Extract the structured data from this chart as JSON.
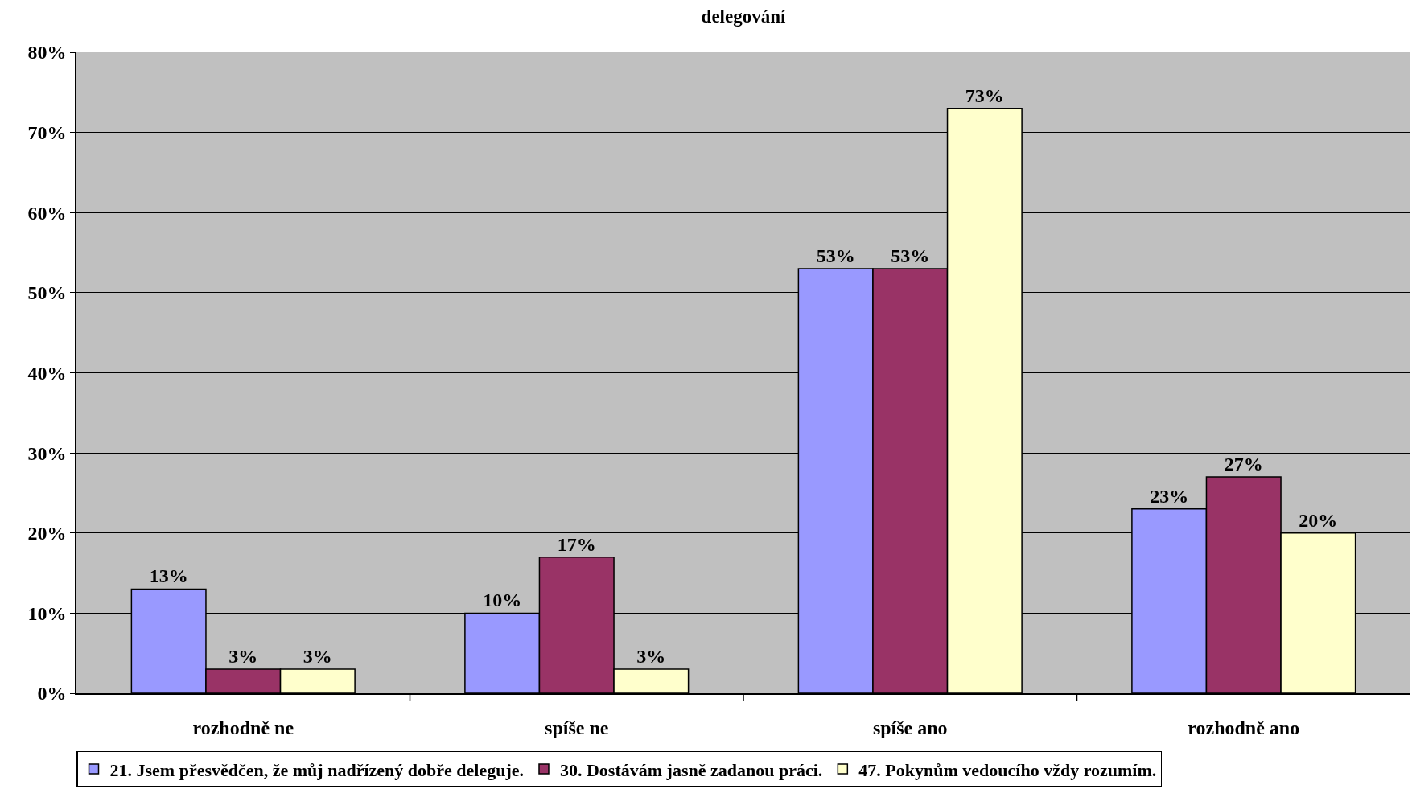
{
  "chart_data": {
    "type": "bar",
    "title": "delegování",
    "categories": [
      "rozhodně ne",
      "spíše ne",
      "spíše ano",
      "rozhodně ano"
    ],
    "series": [
      {
        "name": "21. Jsem přesvědčen, že můj nadřízený dobře deleguje.",
        "color": "#9999ff",
        "values": [
          13,
          10,
          53,
          23
        ],
        "value_labels": [
          "13%",
          "10%",
          "53%",
          "23%"
        ]
      },
      {
        "name": "30. Dostávám jasně zadanou práci.",
        "color": "#993366",
        "values": [
          3,
          17,
          53,
          27
        ],
        "value_labels": [
          "3%",
          "17%",
          "53%",
          "27%"
        ]
      },
      {
        "name": "47. Pokynům vedoucího vždy rozumím.",
        "color": "#ffffcc",
        "values": [
          3,
          3,
          73,
          20
        ],
        "value_labels": [
          "3%",
          "3%",
          "73%",
          "20%"
        ]
      }
    ],
    "ylim": [
      0,
      80
    ],
    "yticks": [
      {
        "value": 0,
        "label": "0%"
      },
      {
        "value": 10,
        "label": "10%"
      },
      {
        "value": 20,
        "label": "20%"
      },
      {
        "value": 30,
        "label": "30%"
      },
      {
        "value": 40,
        "label": "40%"
      },
      {
        "value": 50,
        "label": "50%"
      },
      {
        "value": 60,
        "label": "60%"
      },
      {
        "value": 70,
        "label": "70%"
      },
      {
        "value": 80,
        "label": "80%"
      }
    ],
    "grid": "y",
    "legend": "bottom"
  }
}
